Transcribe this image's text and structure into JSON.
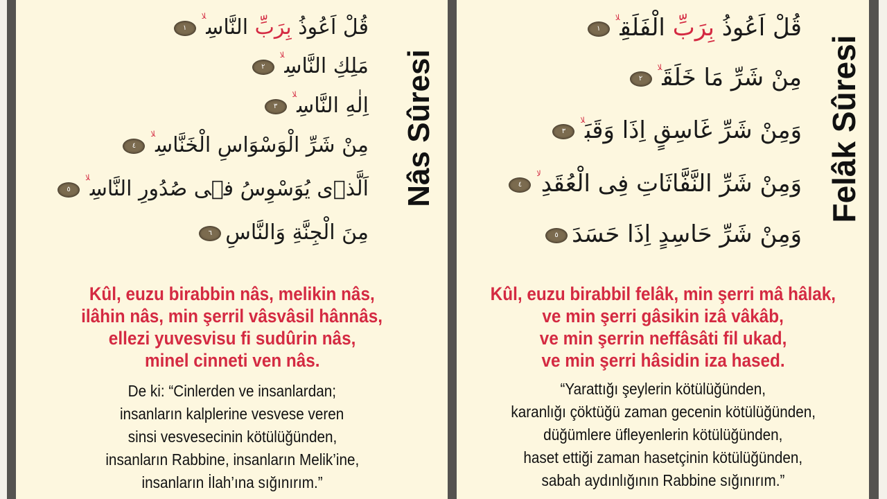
{
  "colors": {
    "background": "#fdf7df",
    "border": "#555350",
    "accent_red": "#d42a42",
    "verse_marker": "#7b6b4f",
    "text": "#111111"
  },
  "waqf_mark": "لا",
  "nas": {
    "title": "Nâs Sûresi",
    "verses": [
      {
        "before": "قُلْ اَعُوذُ ",
        "red": "بِرَبِّ",
        "after": " النَّاسِ",
        "number": "١",
        "waqf": true
      },
      {
        "before": "مَلِكِ النَّاسِ",
        "red": "",
        "after": "",
        "number": "٢",
        "waqf": true
      },
      {
        "before": "اِلٰهِ النَّاسِ",
        "red": "",
        "after": "",
        "number": "٣",
        "waqf": true
      },
      {
        "before": "مِنْ شَرِّ الْوَسْوَاسِ الْخَنَّاسِ",
        "red": "",
        "after": "",
        "number": "٤",
        "waqf": true
      },
      {
        "before": "اَلَّذٖى يُوَسْوِسُ فٖى صُدُورِ النَّاسِ",
        "red": "",
        "after": "",
        "number": "٥",
        "waqf": true
      },
      {
        "before": "مِنَ الْجِنَّةِ وَالنَّاسِ",
        "red": "",
        "after": "",
        "number": "٦",
        "waqf": false
      }
    ],
    "transliteration": [
      "Kûl, euzu birabbin nâs, melikin nâs,",
      "ilâhin nâs, min şerril vâsvâsil hânnâs,",
      "ellezi yuvesvisu fi sudûrin nâs,",
      "minel cinneti ven nâs."
    ],
    "meaning": [
      "De ki: “Cinlerden ve insanlardan;",
      "insanların kalplerine vesvese veren",
      "sinsi vesvesecinin kötülüğünden,",
      "insanların Rabbine, insanların Melik’ine,",
      "insanların İlah’ına sığınırım.”"
    ]
  },
  "felak": {
    "title": "Felâk Sûresi",
    "verses": [
      {
        "before": "قُلْ اَعُوذُ ",
        "red": "بِرَبِّ",
        "after": " الْفَلَقِ",
        "number": "١",
        "waqf": true
      },
      {
        "before": "مِنْ شَرِّ مَا خَلَقَ",
        "red": "",
        "after": "",
        "number": "٢",
        "waqf": true
      },
      {
        "before": "وَمِنْ شَرِّ غَاسِقٍ اِذَا وَقَبَ",
        "red": "",
        "after": "",
        "number": "٣",
        "waqf": true
      },
      {
        "before": "وَمِنْ شَرِّ النَّفَّاثَاتِ فِى الْعُقَدِ",
        "red": "",
        "after": "",
        "number": "٤",
        "waqf": true
      },
      {
        "before": "وَمِنْ شَرِّ حَاسِدٍ اِذَا حَسَدَ",
        "red": "",
        "after": "",
        "number": "٥",
        "waqf": false
      }
    ],
    "transliteration": [
      "Kûl, euzu birabbil felâk, min şerri mâ hâlak,",
      "ve min şerri gâsikin izâ vâkâb,",
      "ve min şerrin neffâsâti fil ukad,",
      "ve min şerri hâsidin iza hased."
    ],
    "meaning": [
      "“Yarattığı şeylerin kötülüğünden,",
      "karanlığı çöktüğü zaman gecenin kötülüğünden,",
      "düğümlere üfleyenlerin kötülüğünden,",
      "haset ettiği zaman hasetçinin kötülüğünden,",
      "sabah aydınlığının Rabbine sığınırım.”"
    ]
  }
}
